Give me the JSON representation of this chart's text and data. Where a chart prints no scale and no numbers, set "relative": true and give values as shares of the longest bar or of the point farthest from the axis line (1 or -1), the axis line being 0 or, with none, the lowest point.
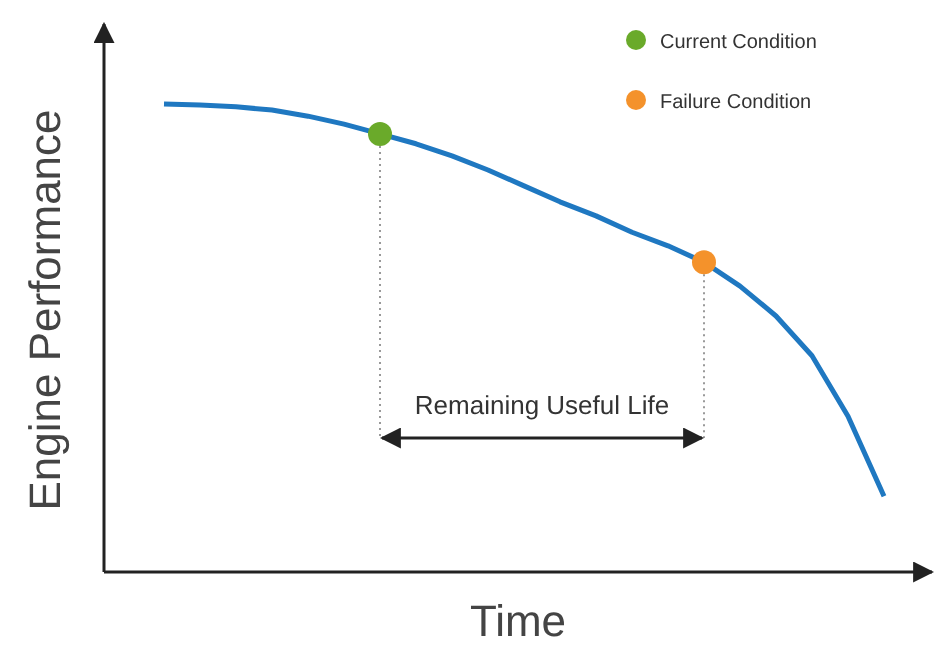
{
  "chart_data": {
    "type": "line",
    "relative": true,
    "xlabel": "Time",
    "ylabel": "Engine Performance",
    "tick_labels": false,
    "grid": false,
    "legend": "top right",
    "categories": [
      null,
      null,
      null,
      null,
      null,
      null,
      null,
      null,
      null,
      null,
      null,
      null,
      null,
      null,
      null,
      null,
      null,
      null,
      null,
      null,
      null
    ],
    "series": [
      {
        "color": "#1f78c1",
        "marker": "none",
        "values": [
          1.0,
          0.998,
          0.994,
          0.987,
          0.974,
          0.957,
          0.936,
          0.915,
          0.889,
          0.859,
          0.825,
          0.791,
          0.761,
          0.726,
          0.697,
          0.662,
          0.611,
          0.547,
          0.462,
          0.333,
          0.162
        ]
      },
      {
        "name": "Current Condition",
        "color": "#6aaa2a",
        "marker": "circle",
        "values": [
          null,
          null,
          null,
          null,
          null,
          null,
          0.936,
          null,
          null,
          null,
          null,
          null,
          null,
          null,
          null,
          null,
          null,
          null,
          null,
          null,
          null
        ]
      },
      {
        "name": "Failure Condition",
        "color": "#f4922b",
        "marker": "circle",
        "values": [
          null,
          null,
          null,
          null,
          null,
          null,
          null,
          null,
          null,
          null,
          null,
          null,
          null,
          null,
          null,
          0.662,
          null,
          null,
          null,
          null,
          null
        ]
      }
    ],
    "annotations": [
      "Remaining Useful Life"
    ]
  }
}
